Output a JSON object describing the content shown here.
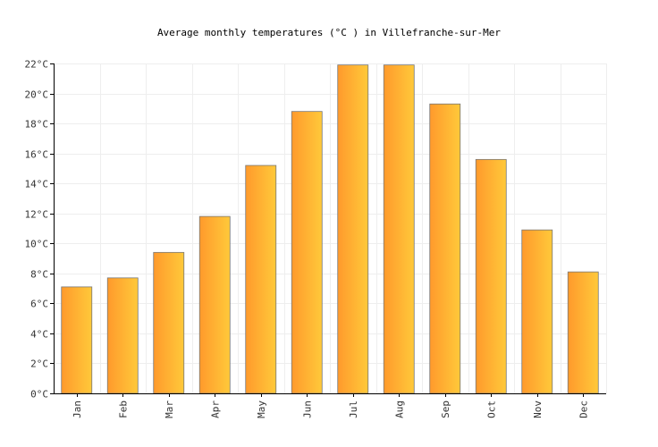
{
  "chart_data": {
    "type": "bar",
    "title": "Average monthly temperatures (°C ) in Villefranche-sur-Mer",
    "categories": [
      "Jan",
      "Feb",
      "Mar",
      "Apr",
      "May",
      "Jun",
      "Jul",
      "Aug",
      "Sep",
      "Oct",
      "Nov",
      "Dec"
    ],
    "values": [
      7.1,
      7.7,
      9.4,
      11.8,
      15.2,
      18.8,
      21.9,
      21.9,
      19.3,
      15.6,
      10.9,
      8.1
    ],
    "ylim": [
      0,
      22
    ],
    "yticks": [
      0,
      2,
      4,
      6,
      8,
      10,
      12,
      14,
      16,
      18,
      20,
      22
    ],
    "ytick_labels": [
      "0°C",
      "2°C",
      "4°C",
      "6°C",
      "8°C",
      "10°C",
      "12°C",
      "14°C",
      "16°C",
      "18°C",
      "20°C",
      "22°C"
    ],
    "grid": true,
    "colors": {
      "bar_left": "#ff9a2c",
      "bar_right": "#ffc93a",
      "bar_stroke": "#777777",
      "grid": "#eeeeee"
    }
  }
}
